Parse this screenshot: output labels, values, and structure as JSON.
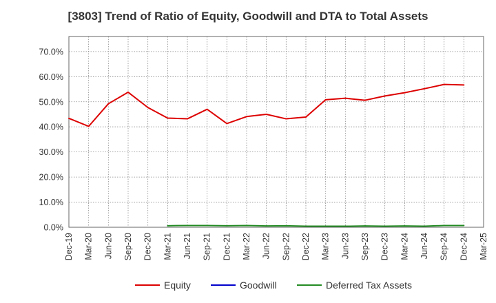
{
  "chart_data": {
    "type": "line",
    "title": "[3803]  Trend of Ratio of Equity, Goodwill and DTA to Total Assets",
    "xlabel": "",
    "ylabel": "",
    "x_ticks": [
      "Dec-19",
      "Mar-20",
      "Jun-20",
      "Sep-20",
      "Dec-20",
      "Mar-21",
      "Jun-21",
      "Sep-21",
      "Dec-21",
      "Mar-22",
      "Jun-22",
      "Sep-22",
      "Dec-22",
      "Mar-23",
      "Jun-23",
      "Sep-23",
      "Dec-23",
      "Mar-24",
      "Jun-24",
      "Sep-24",
      "Dec-24",
      "Mar-25"
    ],
    "y_ticks": [
      "0.0%",
      "10.0%",
      "20.0%",
      "30.0%",
      "40.0%",
      "50.0%",
      "60.0%",
      "70.0%"
    ],
    "ylim": [
      0,
      76
    ],
    "grid": true,
    "legend_position": "bottom",
    "series": [
      {
        "name": "Equity",
        "color": "#dd0000",
        "x": [
          "Dec-19",
          "Mar-20",
          "Jun-20",
          "Sep-20",
          "Dec-20",
          "Mar-21",
          "Jun-21",
          "Sep-21",
          "Dec-21",
          "Mar-22",
          "Jun-22",
          "Sep-22",
          "Dec-22",
          "Mar-23",
          "Jun-23",
          "Sep-23",
          "Dec-23",
          "Mar-24",
          "Jun-24",
          "Sep-24",
          "Dec-24"
        ],
        "values": [
          43.4,
          40.2,
          49.2,
          53.8,
          47.7,
          43.5,
          43.2,
          47.0,
          41.3,
          44.1,
          45.0,
          43.2,
          43.9,
          50.8,
          51.4,
          50.6,
          52.3,
          53.6,
          55.2,
          56.9,
          56.7
        ]
      },
      {
        "name": "Goodwill",
        "color": "#0000cc",
        "x": [],
        "values": []
      },
      {
        "name": "Deferred Tax Assets",
        "color": "#228b22",
        "x": [
          "Mar-21",
          "Jun-21",
          "Sep-21",
          "Dec-21",
          "Mar-22",
          "Jun-22",
          "Sep-22",
          "Dec-22",
          "Mar-23",
          "Jun-23",
          "Sep-23",
          "Dec-23",
          "Mar-24",
          "Jun-24",
          "Sep-24",
          "Dec-24"
        ],
        "values": [
          0.6,
          0.7,
          0.7,
          0.6,
          0.7,
          0.5,
          0.6,
          0.4,
          0.4,
          0.4,
          0.5,
          0.4,
          0.5,
          0.4,
          0.7,
          0.7
        ]
      }
    ]
  }
}
